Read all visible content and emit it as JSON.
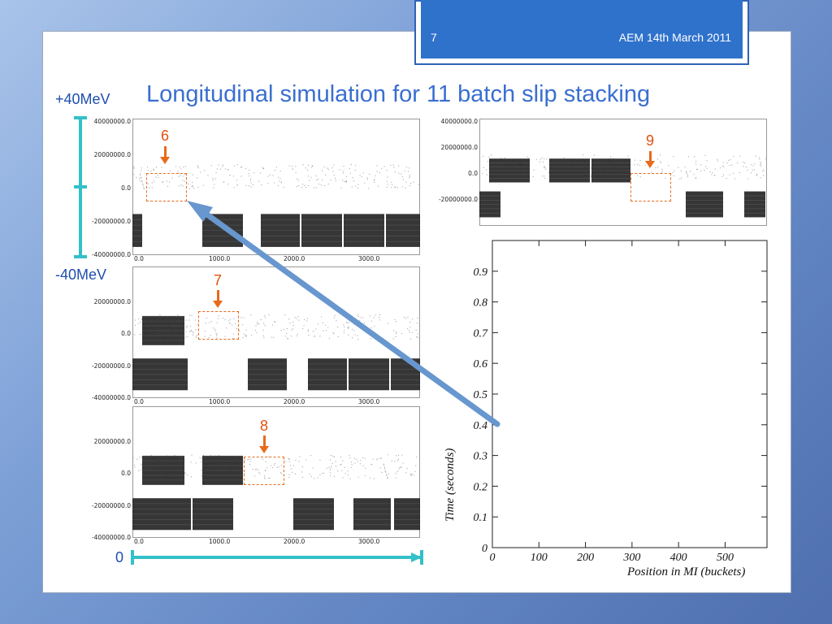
{
  "header": {
    "slide_number": "7",
    "footer": "AEM 14th March 2011"
  },
  "title": "Longitudinal simulation for 11 batch slip stacking",
  "energy_scale": {
    "top": "+40MeV",
    "bottom": "-40MeV",
    "zero": "0"
  },
  "phase_space_plots": {
    "y_ticks": [
      "40000000.0",
      "20000000.0",
      "0.0",
      "-20000000.0",
      "-40000000.0"
    ],
    "x_ticks": [
      "0.0",
      "1000.0",
      "2000.0",
      "3000.0"
    ],
    "panels": [
      {
        "step": "6"
      },
      {
        "step": "7"
      },
      {
        "step": "8"
      },
      {
        "step": "9"
      }
    ]
  },
  "chart_data": {
    "type": "area",
    "ylabel": "Time (seconds)",
    "xlabel": "Position in MI (buckets)",
    "xlim": [
      0,
      590
    ],
    "ylim": [
      0,
      1.0
    ],
    "x_ticks": [
      0,
      100,
      200,
      300,
      400,
      500
    ],
    "y_ticks": [
      0,
      0.1,
      0.2,
      0.3,
      0.4,
      0.5,
      0.6,
      0.7,
      0.8,
      0.9
    ],
    "colors": {
      "magenta": "#ff00ff",
      "blue": "#0000ee",
      "red": "#ff0000"
    }
  }
}
